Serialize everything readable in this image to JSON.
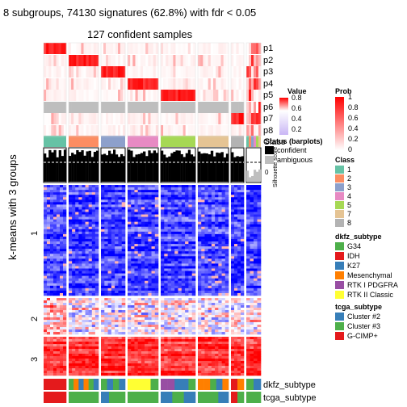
{
  "title": "8 subgroups, 74130 signatures (62.8%) with fdr < 0.05",
  "subtitle": "127 confident samples",
  "y_axis_label": "k-means with 3 groups",
  "row_annotations": [
    "p1",
    "p2",
    "p3",
    "p4",
    "p5",
    "p6",
    "p7",
    "p8",
    "Class",
    "Silhouette score",
    "dkfz_subtype",
    "tcga_subtype"
  ],
  "silhouette_ticks": [
    "1",
    "0"
  ],
  "legends": {
    "value": {
      "title": "Value",
      "ticks": [
        "0.8",
        "0.6",
        "0.4",
        "0.2"
      ]
    },
    "prob": {
      "title": "Prob",
      "ticks": [
        "1",
        "0.8",
        "0.6",
        "0.4",
        "0.2",
        "0"
      ],
      "color_high": "#ff0000",
      "color_low": "#ffffff"
    },
    "status": {
      "title": "Status (barplots)",
      "items": [
        {
          "label": "confident",
          "color": "#000000"
        },
        {
          "label": "ambiguous",
          "color": "#bebebe"
        }
      ]
    },
    "class": {
      "title": "Class",
      "items": [
        {
          "label": "1",
          "color": "#66c2a5"
        },
        {
          "label": "2",
          "color": "#fc8d62"
        },
        {
          "label": "3",
          "color": "#8da0cb"
        },
        {
          "label": "4",
          "color": "#e78ac3"
        },
        {
          "label": "5",
          "color": "#a6d854"
        },
        {
          "label": "7",
          "color": "#e5c494"
        },
        {
          "label": "8",
          "color": "#b3b3b3"
        }
      ]
    },
    "dkfz_subtype": {
      "title": "dkfz_subtype",
      "items": [
        {
          "label": "G34",
          "color": "#4daf4a"
        },
        {
          "label": "IDH",
          "color": "#e41a1c"
        },
        {
          "label": "K27",
          "color": "#377eb8"
        },
        {
          "label": "Mesenchymal",
          "color": "#ff7f00"
        },
        {
          "label": "RTK I PDGFRA",
          "color": "#984ea3"
        },
        {
          "label": "RTK II Classic",
          "color": "#ffff33"
        }
      ]
    },
    "tcga_subtype": {
      "title": "tcga_subtype",
      "items": [
        {
          "label": "Cluster #2",
          "color": "#377eb8"
        },
        {
          "label": "Cluster #3",
          "color": "#4daf4a"
        },
        {
          "label": "G-CIMP+",
          "color": "#e41a1c"
        }
      ]
    }
  },
  "chart_data": {
    "type": "heatmap",
    "title": "8 subgroups, 74130 signatures (62.8%) with fdr < 0.05",
    "subtitle": "127 confident samples",
    "ylabel": "k-means with 3 groups",
    "row_groups": [
      "1",
      "2",
      "3"
    ],
    "column_classes": [
      "1",
      "2",
      "3",
      "4",
      "5",
      "7",
      "8"
    ],
    "heatmap_colors": {
      "low": "#0000ff",
      "mid": "#ffffff",
      "high": "#ff0000"
    },
    "probability_scale": {
      "min": 0,
      "max": 1
    },
    "legend_placement": "right"
  }
}
